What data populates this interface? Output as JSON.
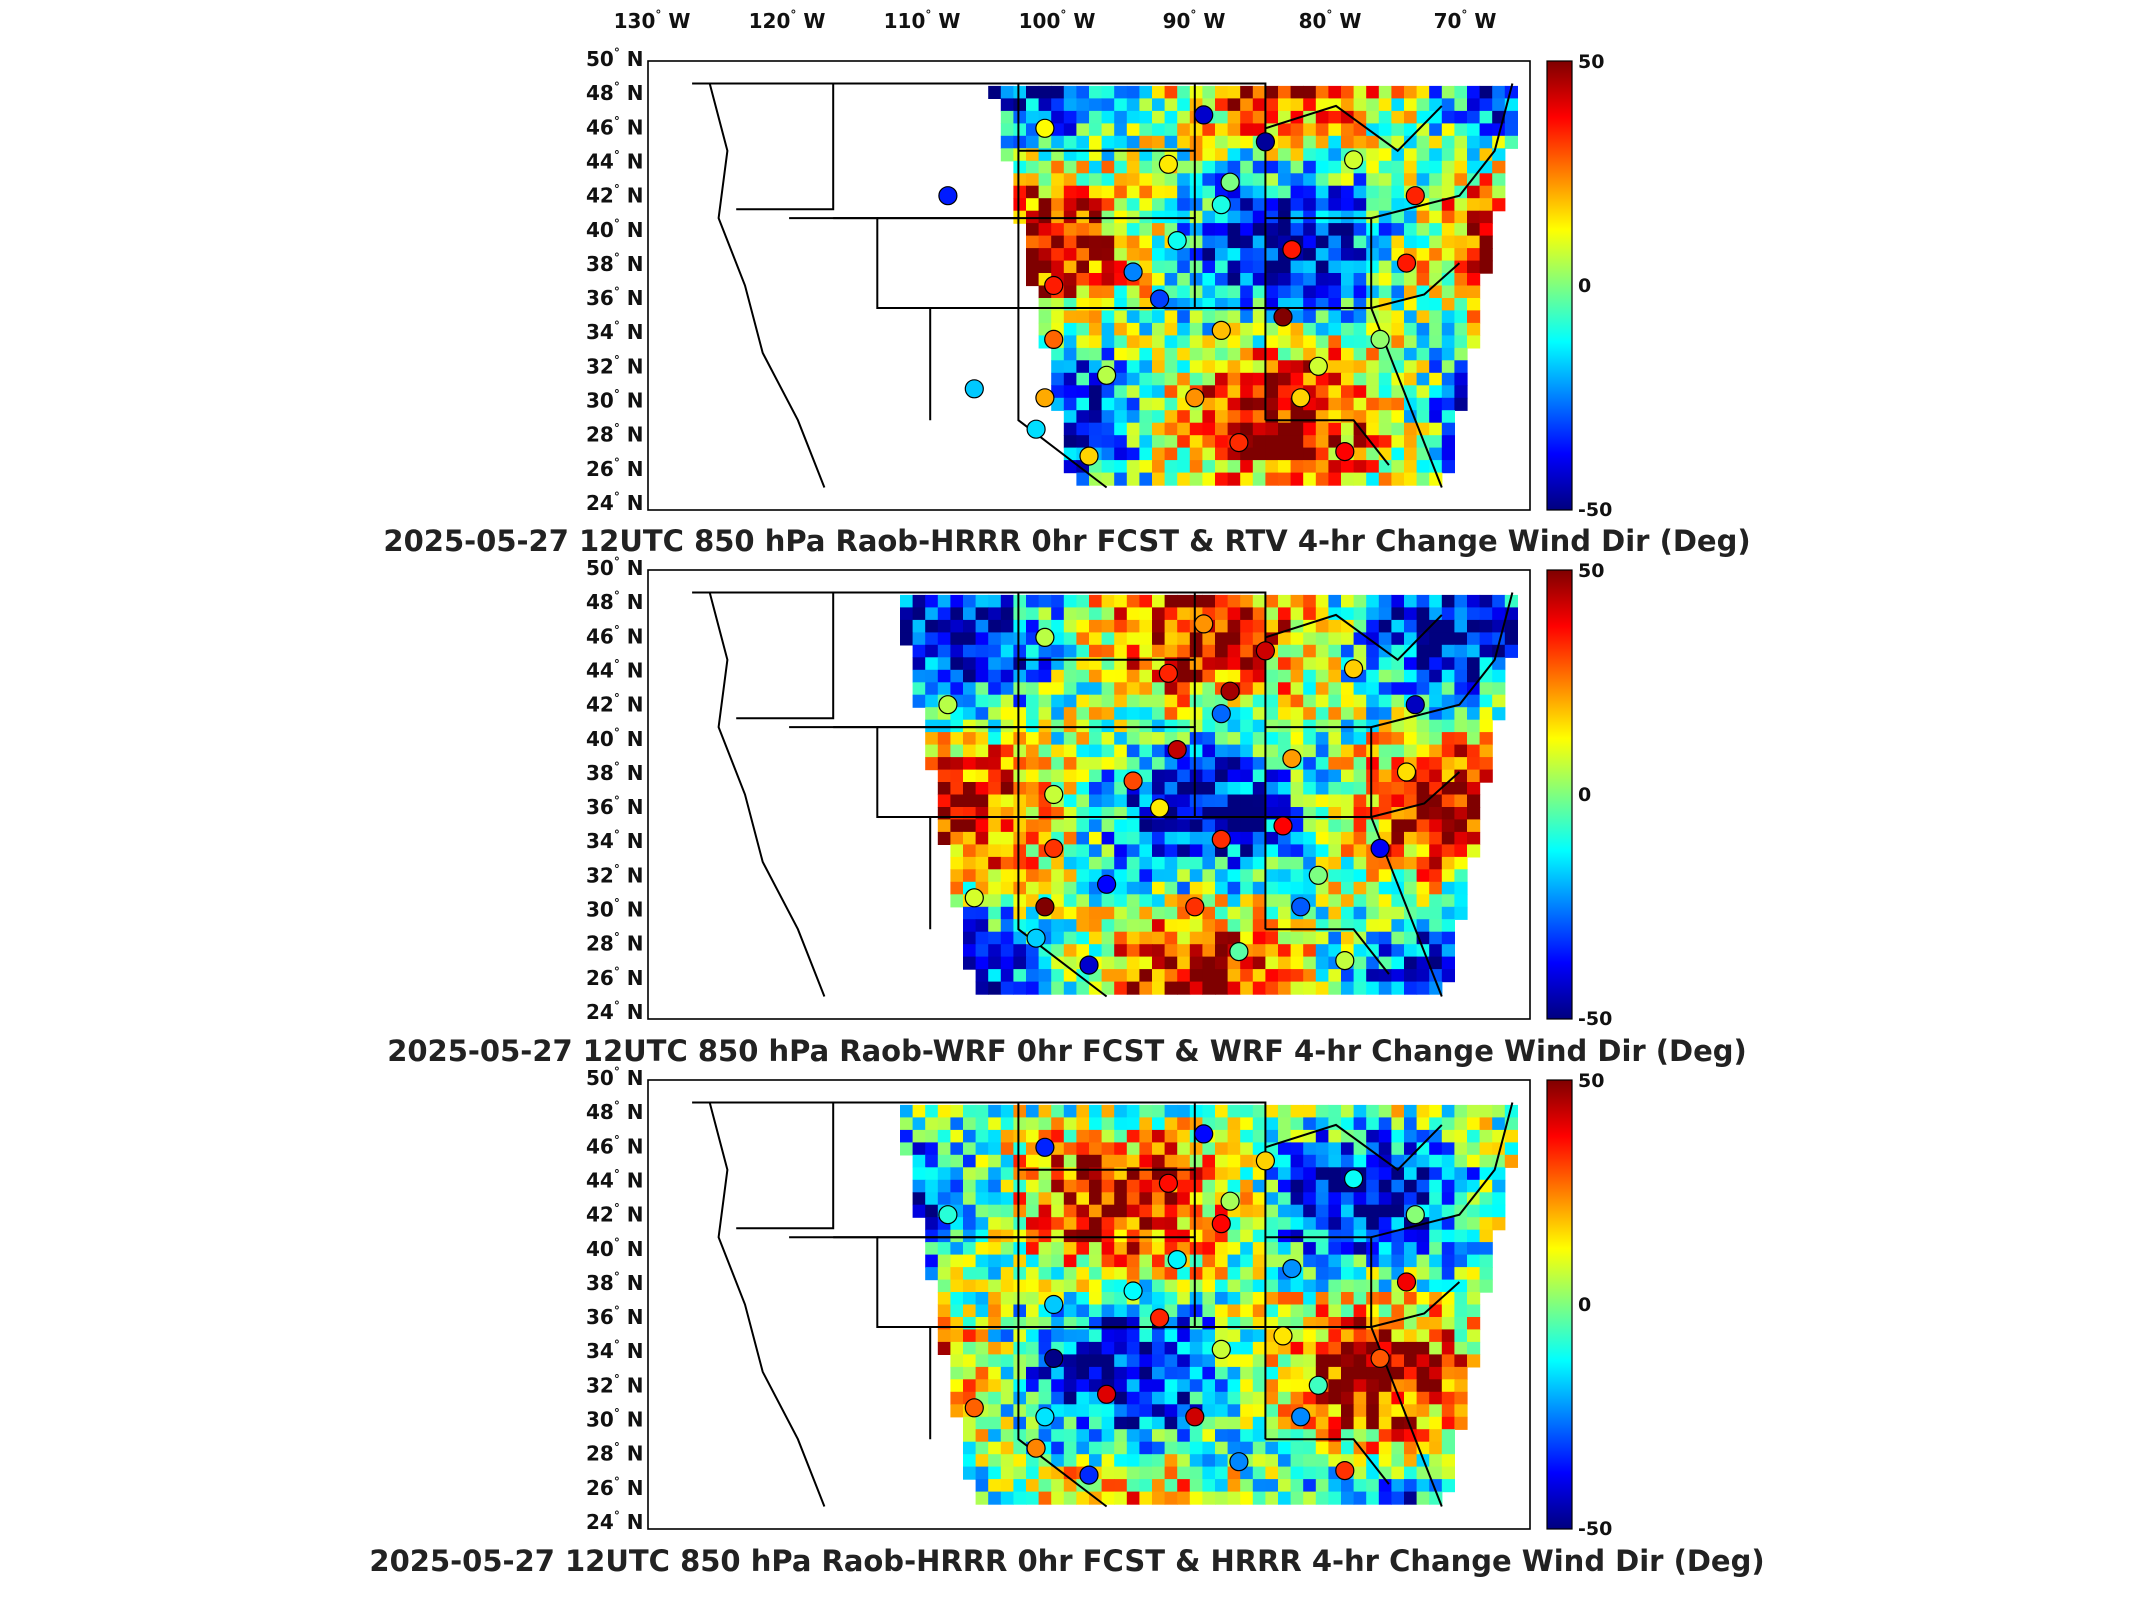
{
  "figure": {
    "lon_labels": [
      "130",
      "120",
      "110",
      "100",
      "90",
      "80",
      "70"
    ],
    "lon_suffix": "W",
    "lat_labels": [
      "50",
      "48",
      "46",
      "44",
      "42",
      "40",
      "38",
      "36",
      "34",
      "32",
      "30",
      "28",
      "26",
      "24"
    ],
    "lat_suffix": "N",
    "colorbar": {
      "max_label": "50",
      "mid_label": "0",
      "min_label": "-50",
      "colors": [
        "#00007f",
        "#0000ff",
        "#007fff",
        "#00ffff",
        "#7fff7f",
        "#ffff00",
        "#ff7f00",
        "#ff0000",
        "#7f0000"
      ]
    }
  },
  "panels": [
    {
      "title": "2025-05-27 12UTC 850 hPa Raob-HRRR 0hr FCST & RTV 4-hr Change Wind Dir (Deg)"
    },
    {
      "title": "2025-05-27 12UTC 850 hPa Raob-WRF 0hr FCST & WRF 4-hr Change Wind Dir (Deg)"
    },
    {
      "title": "2025-05-27 12UTC 850 hPa Raob-HRRR 0hr FCST & HRRR 4-hr Change Wind Dir (Deg)"
    }
  ]
}
